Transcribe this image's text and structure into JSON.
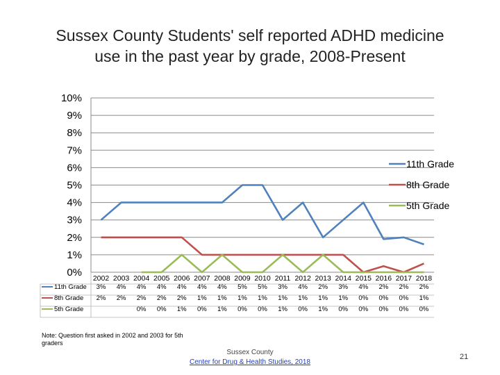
{
  "slide": {
    "title_line1": "Sussex County Students' self reported ADHD medicine",
    "title_line2": "use in the past year by grade, 2008-Present",
    "note": "Note: Question first asked in 2002 and 2003 for 5th graders",
    "credit_line1": "Sussex County",
    "credit_line2": "Center for Drug & Health Studies, 2018",
    "page_number": "21"
  },
  "chart_data": {
    "type": "line",
    "title": "",
    "xlabel": "",
    "ylabel": "",
    "ylim": [
      0,
      10
    ],
    "y_tick_labels": [
      "0%",
      "1%",
      "2%",
      "3%",
      "4%",
      "5%",
      "6%",
      "7%",
      "8%",
      "9%",
      "10%"
    ],
    "grid": true,
    "legend_position": "right",
    "categories": [
      "2002",
      "2003",
      "2004",
      "2005",
      "2006",
      "2007",
      "2008",
      "2009",
      "2010",
      "2011",
      "2012",
      "2013",
      "2014",
      "2015",
      "2016",
      "2017",
      "2018"
    ],
    "series": [
      {
        "name": "11th Grade",
        "color": "#4f81bd",
        "values": [
          3.0,
          4.0,
          4.0,
          4.0,
          4.0,
          4.0,
          4.0,
          5.0,
          5.0,
          3.0,
          4.0,
          2.0,
          3.0,
          4.0,
          1.9,
          2.0,
          1.6
        ],
        "table_labels": [
          "3%",
          "4%",
          "4%",
          "4%",
          "4%",
          "4%",
          "4%",
          "5%",
          "5%",
          "3%",
          "4%",
          "2%",
          "3%",
          "4%",
          "2%",
          "2%",
          "2%"
        ]
      },
      {
        "name": "8th Grade",
        "color": "#c0504d",
        "values": [
          2.0,
          2.0,
          2.0,
          2.0,
          2.0,
          1.0,
          1.0,
          1.0,
          1.0,
          1.0,
          1.0,
          1.0,
          1.0,
          0.0,
          0.35,
          0.0,
          0.5
        ],
        "table_labels": [
          "2%",
          "2%",
          "2%",
          "2%",
          "2%",
          "1%",
          "1%",
          "1%",
          "1%",
          "1%",
          "1%",
          "1%",
          "1%",
          "0%",
          "0%",
          "0%",
          "1%"
        ]
      },
      {
        "name": "5th Grade",
        "color": "#9bbb59",
        "values": [
          null,
          null,
          0.0,
          0.0,
          1.0,
          0.0,
          1.0,
          0.0,
          0.0,
          1.0,
          0.0,
          1.0,
          0.0,
          0.0,
          0.0,
          0.0,
          0.0
        ],
        "table_labels": [
          "",
          "",
          "0%",
          "0%",
          "1%",
          "0%",
          "1%",
          "0%",
          "0%",
          "1%",
          "0%",
          "1%",
          "0%",
          "0%",
          "0%",
          "0%",
          "0%"
        ]
      }
    ]
  }
}
